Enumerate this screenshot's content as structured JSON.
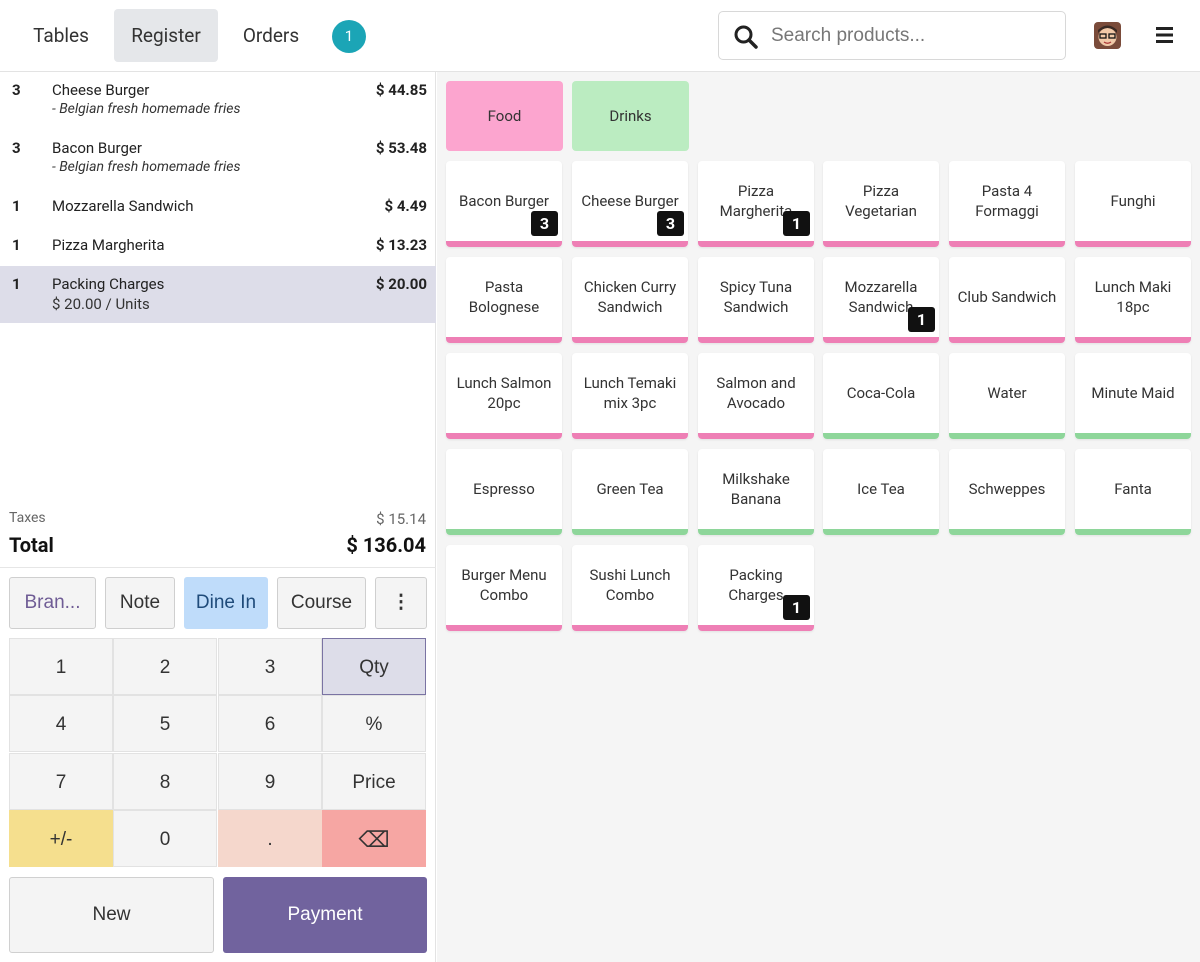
{
  "header": {
    "tabs": [
      {
        "label": "Tables"
      },
      {
        "label": "Register"
      },
      {
        "label": "Orders"
      }
    ],
    "orders_badge": "1",
    "search_placeholder": "Search products..."
  },
  "order": {
    "lines": [
      {
        "qty": "3",
        "name": "Cheese Burger",
        "sub": "- Belgian fresh homemade fries",
        "price": "$ 44.85"
      },
      {
        "qty": "3",
        "name": "Bacon Burger",
        "sub": "- Belgian fresh homemade fries",
        "price": "$ 53.48"
      },
      {
        "qty": "1",
        "name": "Mozzarella Sandwich",
        "price": "$ 4.49"
      },
      {
        "qty": "1",
        "name": "Pizza Margherita",
        "price": "$ 13.23"
      },
      {
        "qty": "1",
        "name": "Packing Charges",
        "sub": "$ 20.00 / Units",
        "price": "$ 20.00"
      }
    ],
    "taxes_label": "Taxes",
    "taxes_value": "$ 15.14",
    "total_label": "Total",
    "total_value": "$ 136.04"
  },
  "controls": {
    "brand": "Bran...",
    "note": "Note",
    "dine_in": "Dine In",
    "course": "Course",
    "more": "⋮"
  },
  "numpad": {
    "keys": [
      "1",
      "2",
      "3",
      "Qty",
      "4",
      "5",
      "6",
      "%",
      "7",
      "8",
      "9",
      "Price",
      "+/-",
      "0",
      ".",
      "⌫"
    ]
  },
  "actions": {
    "new": "New",
    "payment": "Payment"
  },
  "categories": [
    "Food",
    "Drinks"
  ],
  "products": [
    {
      "name": "Bacon Burger",
      "badge": "3"
    },
    {
      "name": "Cheese Burger",
      "badge": "3"
    },
    {
      "name": "Pizza Margherita",
      "badge": "1"
    },
    {
      "name": "Pizza Vegetarian"
    },
    {
      "name": "Pasta 4 Formaggi"
    },
    {
      "name": "Funghi"
    },
    {
      "name": "Pasta Bolognese"
    },
    {
      "name": "Chicken Curry Sandwich"
    },
    {
      "name": "Spicy Tuna Sandwich"
    },
    {
      "name": "Mozzarella Sandwich",
      "badge": "1"
    },
    {
      "name": "Club Sandwich"
    },
    {
      "name": "Lunch Maki 18pc"
    },
    {
      "name": "Lunch Salmon 20pc"
    },
    {
      "name": "Lunch Temaki mix 3pc"
    },
    {
      "name": "Salmon and Avocado"
    },
    {
      "name": "Coca-Cola"
    },
    {
      "name": "Water"
    },
    {
      "name": "Minute Maid"
    },
    {
      "name": "Espresso"
    },
    {
      "name": "Green Tea"
    },
    {
      "name": "Milkshake Banana"
    },
    {
      "name": "Ice Tea"
    },
    {
      "name": "Schweppes"
    },
    {
      "name": "Fanta"
    },
    {
      "name": "Burger Menu Combo"
    },
    {
      "name": "Sushi Lunch Combo"
    },
    {
      "name": "Packing Charges",
      "badge": "1"
    }
  ]
}
